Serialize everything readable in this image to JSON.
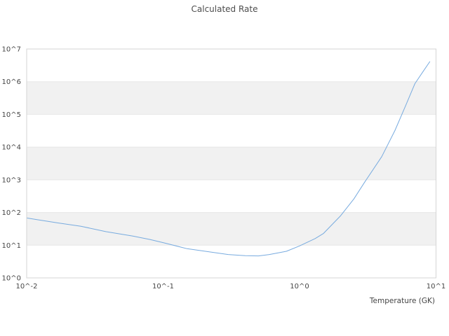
{
  "title": "Calculated Rate",
  "chart_data": {
    "type": "line",
    "title": "Calculated Rate",
    "xlabel": "Temperature (GK)",
    "ylabel": "",
    "x_scale": "log",
    "y_scale": "log",
    "xlim": [
      0.01,
      10
    ],
    "ylim": [
      1,
      10000000
    ],
    "x_tick_labels": [
      "10^-2",
      "10^-1",
      "10^0",
      "10^1"
    ],
    "x_tick_values": [
      0.01,
      0.1,
      1,
      10
    ],
    "y_tick_labels": [
      "10^0",
      "10^1",
      "10^2",
      "10^3",
      "10^4",
      "10^5",
      "10^6",
      "10^7"
    ],
    "y_tick_values": [
      1,
      10,
      100,
      1000,
      10000,
      100000,
      1000000,
      10000000
    ],
    "grid": true,
    "legend": "none",
    "shaded_decade_bands": [
      [
        10,
        100
      ],
      [
        1000,
        10000
      ],
      [
        100000,
        1000000
      ]
    ],
    "series": [
      {
        "name": "calculated-rate",
        "color": "#78abdf",
        "x": [
          0.01,
          0.012,
          0.017,
          0.025,
          0.038,
          0.06,
          0.08,
          0.1,
          0.15,
          0.2,
          0.3,
          0.4,
          0.5,
          0.6,
          0.8,
          1.0,
          1.3,
          1.5,
          2.0,
          2.5,
          3.0,
          4.0,
          5.0,
          6.0,
          7.0,
          8.0,
          9.0
        ],
        "y": [
          68,
          60,
          48,
          38,
          26,
          19,
          15,
          12,
          7.8,
          6.6,
          5.2,
          4.8,
          4.7,
          5.2,
          6.5,
          9.5,
          16,
          23,
          80,
          260,
          850,
          5100,
          32000,
          190000,
          870000,
          2000000,
          4100000
        ]
      }
    ]
  },
  "colors": {
    "line": "#78abdf",
    "band": "#f1f1f1",
    "gridline": "#e7e7e7",
    "frame": "#d5d5d5",
    "background": "#ffffff",
    "text": "#4d4d4d"
  }
}
